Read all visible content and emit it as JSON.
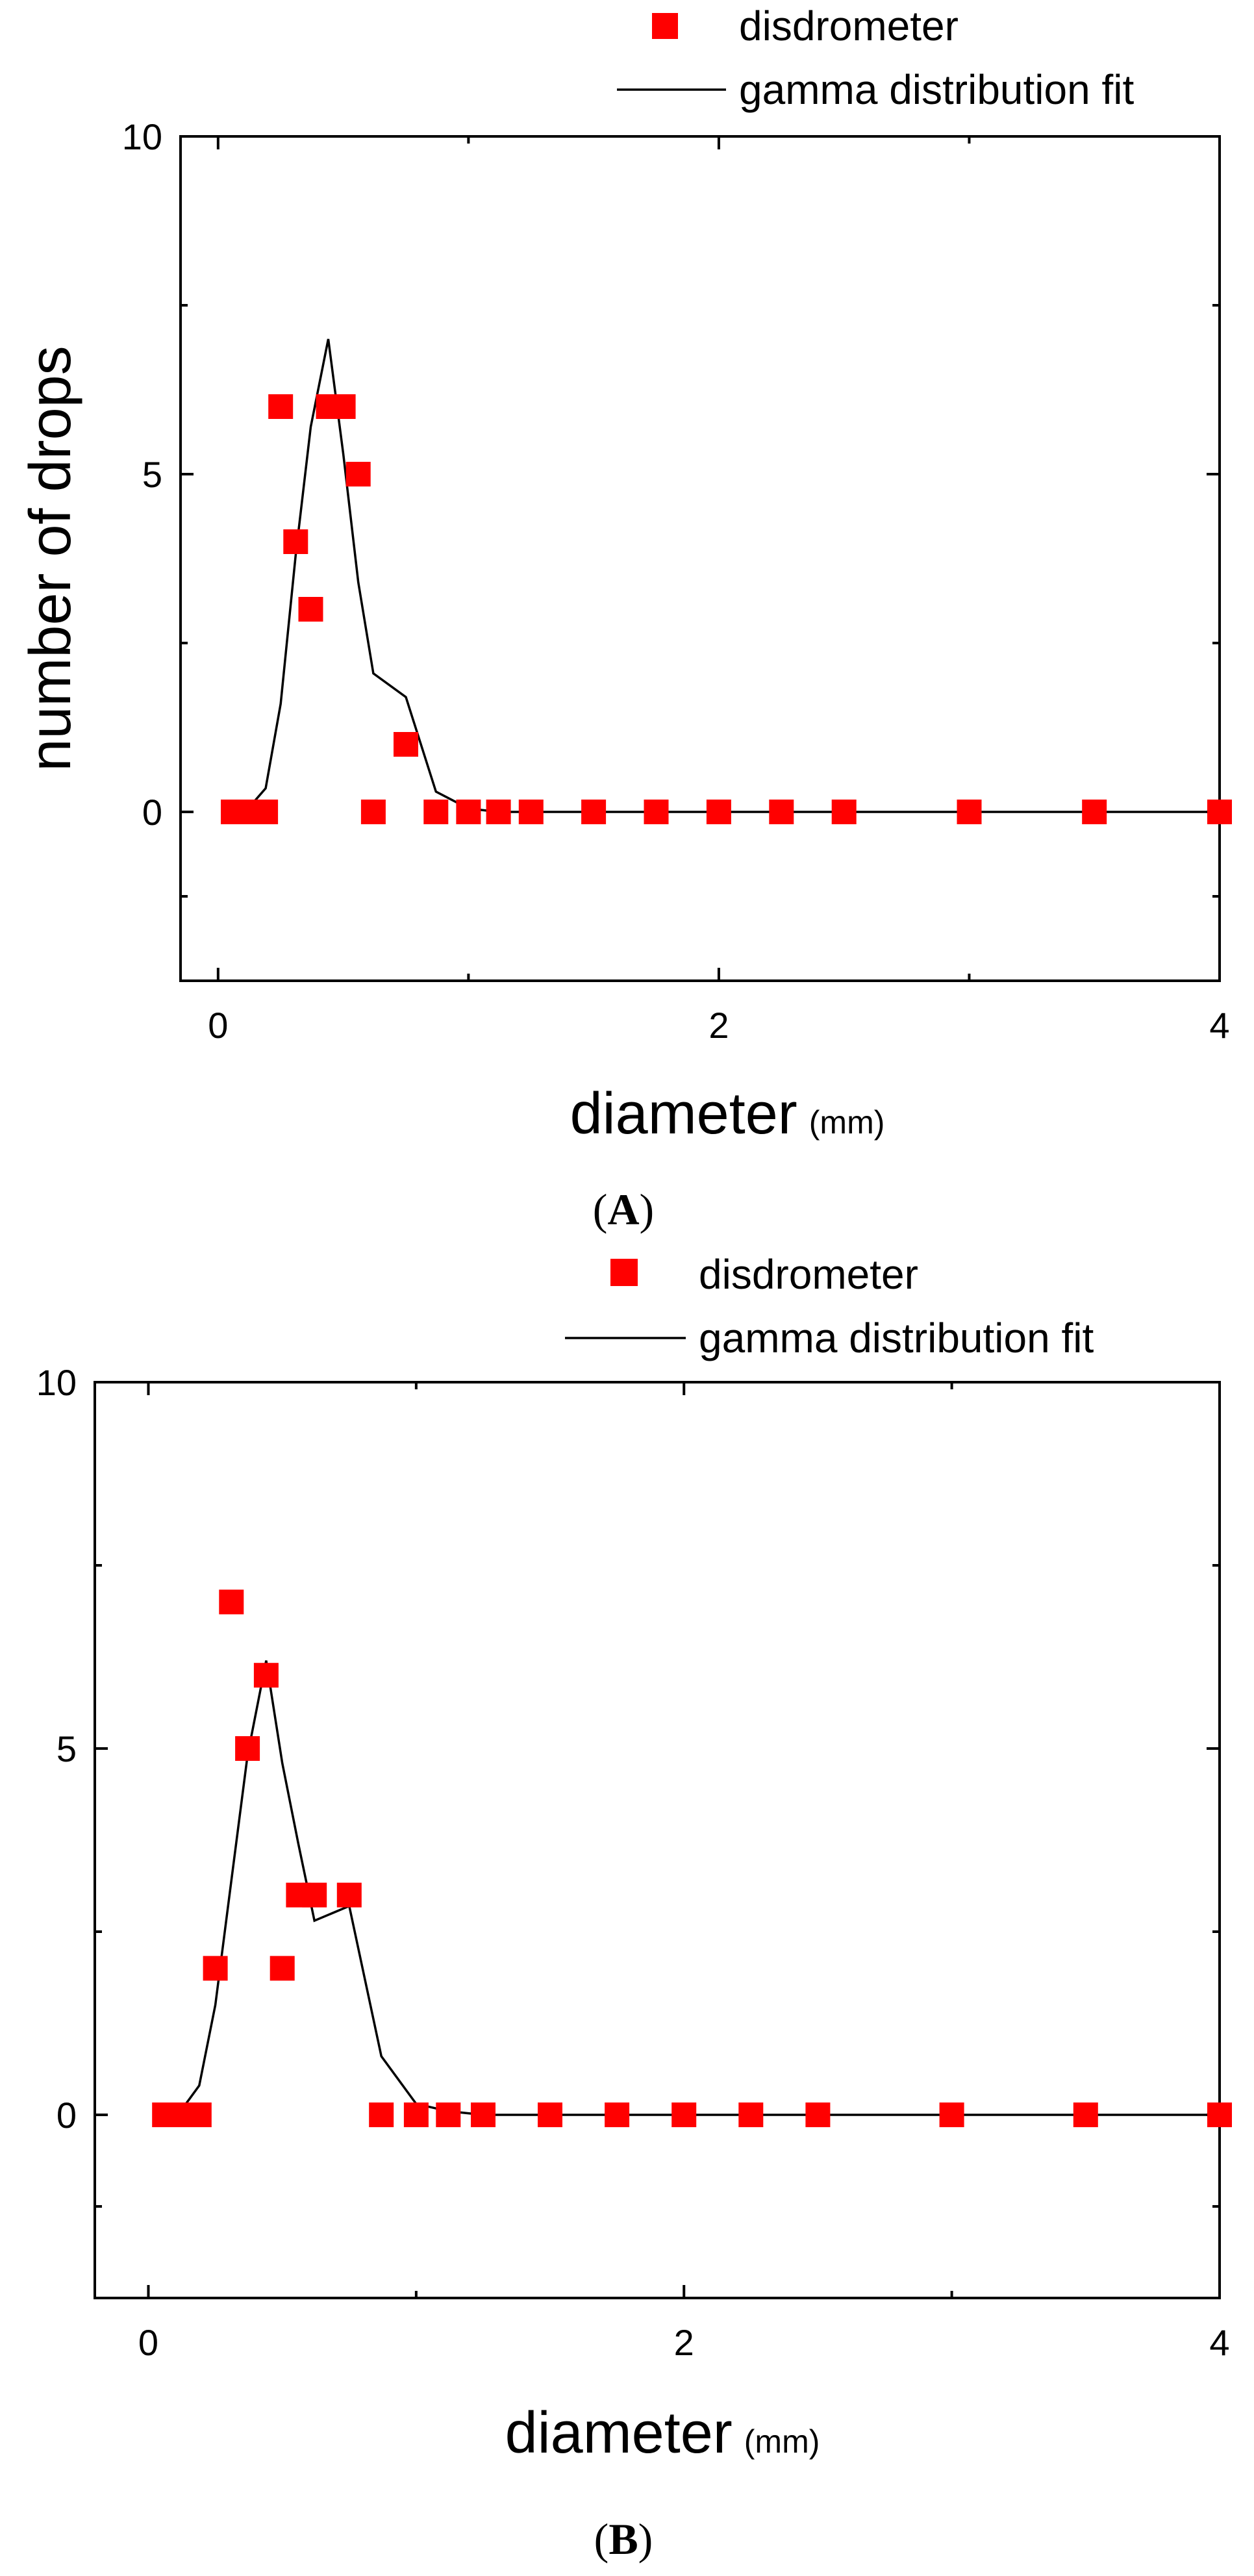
{
  "chart_data": [
    {
      "type": "scatter",
      "panel_label": "A",
      "xlabel": "diameter",
      "xunit": "(mm)",
      "ylabel": "number of drops",
      "xlim": [
        -0.15,
        4
      ],
      "ylim": [
        -2.5,
        10
      ],
      "xticks": [
        0,
        2,
        4
      ],
      "yticks": [
        0,
        5,
        10
      ],
      "legend_placement": "top-right, above plot",
      "series": [
        {
          "name": "disdrometer",
          "kind": "markers",
          "color": "#ff0000",
          "x": [
            0.06,
            0.12,
            0.19,
            0.25,
            0.31,
            0.37,
            0.44,
            0.5,
            0.56,
            0.62,
            0.75,
            0.87,
            1.0,
            1.12,
            1.25,
            1.5,
            1.75,
            2.0,
            2.25,
            2.5,
            3.0,
            3.5,
            4.0
          ],
          "y": [
            0,
            0,
            0,
            6,
            4,
            3,
            6,
            6,
            5,
            0,
            1,
            0,
            0,
            0,
            0,
            0,
            0,
            0,
            0,
            0,
            0,
            0,
            0
          ]
        },
        {
          "name": "gamma distribution fit",
          "kind": "line",
          "color": "#000000",
          "x": [
            0.06,
            0.12,
            0.19,
            0.25,
            0.31,
            0.37,
            0.44,
            0.5,
            0.56,
            0.62,
            0.75,
            0.87,
            1.0,
            1.12,
            1.25,
            1.5,
            1.75,
            2.0,
            2.25,
            2.5,
            3.0,
            3.5,
            4.0
          ],
          "y": [
            0,
            0.05,
            0.35,
            1.6,
            3.8,
            5.7,
            7.0,
            5.3,
            3.4,
            2.05,
            1.7,
            0.3,
            0.05,
            0,
            0,
            0,
            0,
            0,
            0,
            0,
            0,
            0,
            0
          ]
        }
      ]
    },
    {
      "type": "scatter",
      "panel_label": "B",
      "xlabel": "diameter",
      "xunit": "(mm)",
      "ylabel": "",
      "xlim": [
        -0.2,
        4
      ],
      "ylim": [
        -2.5,
        10
      ],
      "xticks": [
        0,
        2,
        4
      ],
      "yticks": [
        0,
        5,
        10
      ],
      "legend_placement": "top-right, above plot",
      "series": [
        {
          "name": "disdrometer",
          "kind": "markers",
          "color": "#ff0000",
          "x": [
            0.06,
            0.12,
            0.19,
            0.25,
            0.31,
            0.37,
            0.44,
            0.5,
            0.56,
            0.62,
            0.75,
            0.87,
            1.0,
            1.12,
            1.25,
            1.5,
            1.75,
            2.0,
            2.25,
            2.5,
            3.0,
            3.5,
            4.0
          ],
          "y": [
            0,
            0,
            0,
            2,
            7,
            5,
            6,
            2,
            3,
            3,
            3,
            0,
            0,
            0,
            0,
            0,
            0,
            0,
            0,
            0,
            0,
            0,
            0
          ]
        },
        {
          "name": "gamma distribution fit",
          "kind": "line",
          "color": "#000000",
          "x": [
            0.06,
            0.12,
            0.19,
            0.25,
            0.31,
            0.37,
            0.44,
            0.5,
            0.56,
            0.62,
            0.75,
            0.87,
            1.0,
            1.12,
            1.25,
            1.5,
            1.75,
            2.0,
            2.25,
            2.5,
            3.0,
            3.5,
            4.0
          ],
          "y": [
            0,
            0.05,
            0.4,
            1.5,
            3.2,
            4.9,
            6.2,
            4.8,
            3.7,
            2.65,
            2.85,
            0.8,
            0.15,
            0.05,
            0,
            0,
            0,
            0,
            0,
            0,
            0,
            0,
            0
          ]
        }
      ]
    }
  ]
}
